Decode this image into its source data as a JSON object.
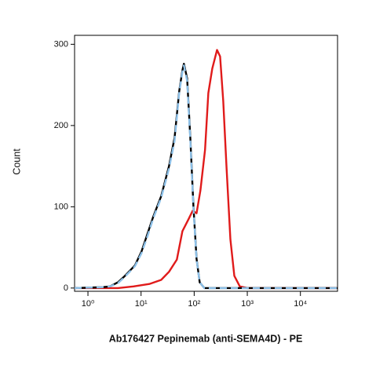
{
  "chart_data": {
    "type": "line",
    "x_label": "Ab176427 Pepinemab (anti-SEMA4D) - PE",
    "y_label": "Count",
    "log_x": true,
    "xlim": [
      0.56,
      50000
    ],
    "ylim": [
      -4,
      311
    ],
    "xticks": [
      {
        "value": 1,
        "label": "10⁰"
      },
      {
        "value": 10,
        "label": "10¹"
      },
      {
        "value": 100,
        "label": "10²"
      },
      {
        "value": 1000,
        "label": "10³"
      },
      {
        "value": 10000,
        "label": "10⁴"
      }
    ],
    "yticks": [
      0,
      100,
      200,
      300
    ],
    "series": [
      {
        "color": "#e01b1b",
        "dash": false,
        "x": [
          0.56,
          3.66,
          7.2,
          14.3,
          23.9,
          33.6,
          47.2,
          60,
          78.7,
          93.5,
          111,
          131,
          160,
          185,
          219,
          269,
          308,
          353,
          405,
          480,
          570,
          723,
          1016,
          50000
        ],
        "values": [
          0,
          0,
          2,
          5,
          10,
          20,
          35,
          70,
          85,
          95,
          92,
          120,
          170,
          240,
          270,
          293,
          285,
          230,
          150,
          60,
          15,
          2,
          0,
          0
        ]
      },
      {
        "color": "#000000",
        "dash": false,
        "x": [
          0.56,
          1.85,
          2.6,
          3.66,
          4.8,
          6.1,
          7.7,
          10.2,
          13.4,
          17,
          23.9,
          33.6,
          42.7,
          52.4,
          60,
          64,
          73.6,
          84.3,
          96.7,
          111,
          127,
          156,
          50000
        ],
        "values": [
          0,
          1,
          2,
          7,
          14,
          21,
          28,
          45,
          68,
          88,
          113,
          150,
          185,
          243,
          268,
          276,
          258,
          186,
          101,
          36,
          7,
          0,
          0
        ]
      },
      {
        "color": "#8cc0e8",
        "dash": true,
        "x": [
          0.56,
          1.85,
          2.6,
          3.66,
          4.8,
          6.1,
          7.7,
          10.2,
          13.4,
          17,
          23.9,
          33.6,
          42.7,
          52.4,
          60,
          64,
          73.6,
          84.3,
          96.7,
          111,
          127,
          156,
          50000
        ],
        "values": [
          0,
          1,
          2,
          6,
          13,
          20,
          27,
          43,
          65,
          86,
          111,
          147,
          181,
          241,
          266,
          274,
          255,
          183,
          99,
          35,
          7,
          0,
          0
        ]
      }
    ]
  }
}
